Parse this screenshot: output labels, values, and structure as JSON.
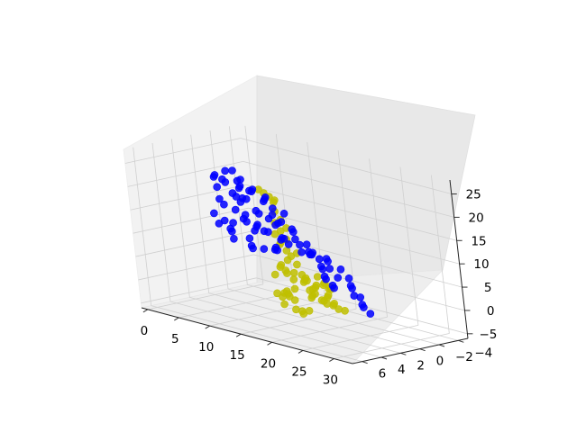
{
  "chart_data": {
    "type": "scatter3d",
    "title": "",
    "xlabel": "",
    "ylabel": "",
    "zlabel": "",
    "grid": true,
    "xlim": [
      -1,
      33
    ],
    "ylim": [
      -5,
      7
    ],
    "zlim": [
      -6,
      28
    ],
    "x_ticks": [
      "0",
      "5",
      "10",
      "15",
      "20",
      "25",
      "30"
    ],
    "y_ticks": [
      "−4",
      "−2",
      "0",
      "2",
      "4",
      "6"
    ],
    "z_ticks": [
      "−5",
      "0",
      "5",
      "10",
      "15",
      "20",
      "25"
    ],
    "series": [
      {
        "color": "#bfbf00",
        "points": [
          [
            14,
            1,
            4
          ],
          [
            15,
            1,
            3
          ],
          [
            16,
            1.5,
            5
          ],
          [
            14,
            -0.5,
            3
          ],
          [
            15,
            0,
            2
          ],
          [
            16,
            0.5,
            3
          ],
          [
            15,
            0.5,
            6
          ],
          [
            15,
            1,
            8
          ],
          [
            16,
            1,
            9
          ],
          [
            13,
            0.5,
            4
          ],
          [
            14,
            1.5,
            6
          ],
          [
            17,
            1,
            4
          ],
          [
            12,
            1,
            3
          ],
          [
            13,
            1,
            5
          ],
          [
            18,
            1.5,
            4
          ],
          [
            17,
            0,
            2
          ],
          [
            16,
            -0.5,
            1
          ],
          [
            16,
            0,
            -1
          ],
          [
            15,
            -0.5,
            0
          ],
          [
            17,
            0.5,
            0
          ],
          [
            15,
            -1,
            -1
          ],
          [
            16,
            -1,
            -2
          ],
          [
            17,
            -1,
            -1
          ],
          [
            18,
            -0.5,
            0
          ],
          [
            18,
            -1,
            -2
          ],
          [
            18,
            0,
            -1
          ],
          [
            17,
            -1.5,
            -3
          ],
          [
            16,
            -1.5,
            -3
          ],
          [
            18,
            -2,
            -4
          ],
          [
            17,
            -2,
            -4
          ],
          [
            13,
            0.5,
            -1
          ],
          [
            12,
            0,
            -1
          ],
          [
            14,
            1,
            -1
          ],
          [
            14,
            1.5,
            0
          ],
          [
            12,
            1,
            -1
          ],
          [
            13,
            1,
            -3
          ],
          [
            14,
            0.5,
            -2
          ],
          [
            12,
            0.5,
            -2
          ],
          [
            15,
            1,
            1
          ],
          [
            16,
            2,
            8
          ],
          [
            16,
            2,
            10
          ],
          [
            15,
            2,
            11
          ],
          [
            16,
            2.5,
            12
          ],
          [
            17,
            2.5,
            13
          ],
          [
            17,
            3,
            15
          ],
          [
            16,
            3,
            14
          ],
          [
            18,
            3,
            16
          ],
          [
            17,
            3.5,
            17
          ],
          [
            18,
            3.5,
            18
          ],
          [
            18,
            4,
            20
          ],
          [
            18,
            4,
            22
          ],
          [
            19,
            4.5,
            23
          ],
          [
            19,
            5,
            24
          ],
          [
            19,
            5.5,
            25
          ],
          [
            19,
            6,
            26
          ],
          [
            17,
            1,
            -3
          ],
          [
            16,
            1,
            -4
          ],
          [
            15,
            0.5,
            -4
          ],
          [
            14,
            0.5,
            -4
          ],
          [
            19,
            0.5,
            3
          ],
          [
            20,
            1,
            4
          ],
          [
            19,
            0,
            2
          ],
          [
            20,
            0.5,
            3
          ],
          [
            21,
            1,
            3
          ],
          [
            18,
            1,
            2
          ],
          [
            19,
            1,
            5
          ]
        ]
      },
      {
        "color": "#0000ff",
        "points": [
          [
            2,
            0,
            20
          ],
          [
            3,
            0.5,
            21
          ],
          [
            4,
            0,
            22
          ],
          [
            5,
            1,
            21
          ],
          [
            6,
            0.5,
            23
          ],
          [
            4,
            1,
            19
          ],
          [
            3,
            -0.5,
            19
          ],
          [
            5,
            -0.5,
            20
          ],
          [
            6,
            0,
            19
          ],
          [
            7,
            0.5,
            20
          ],
          [
            8,
            0,
            19
          ],
          [
            9,
            0.5,
            20
          ],
          [
            10,
            0,
            18
          ],
          [
            11,
            0.5,
            19
          ],
          [
            8,
            1,
            18
          ],
          [
            6,
            -1,
            18
          ],
          [
            7,
            0,
            17
          ],
          [
            9,
            -0.5,
            17
          ],
          [
            10,
            1,
            16
          ],
          [
            12,
            0.5,
            17
          ],
          [
            13,
            0,
            16
          ],
          [
            12,
            1,
            15
          ],
          [
            11,
            0,
            15
          ],
          [
            13,
            1,
            14
          ],
          [
            14,
            1,
            15
          ],
          [
            14,
            0,
            13
          ],
          [
            15,
            0.5,
            13
          ],
          [
            15,
            1.5,
            12
          ],
          [
            16,
            1,
            12
          ],
          [
            17,
            0.5,
            11
          ],
          [
            18,
            1,
            10
          ],
          [
            19,
            1.5,
            10
          ],
          [
            20,
            0.5,
            9
          ],
          [
            21,
            1,
            9
          ],
          [
            22,
            1.5,
            8
          ],
          [
            23,
            1,
            8
          ],
          [
            24,
            2,
            7
          ],
          [
            25,
            1.5,
            7
          ],
          [
            26,
            2,
            6
          ],
          [
            27,
            2.5,
            6
          ],
          [
            28,
            3,
            5
          ],
          [
            29,
            3,
            5
          ],
          [
            30,
            3.5,
            4
          ],
          [
            31,
            4,
            4
          ],
          [
            32,
            4,
            3
          ],
          [
            2,
            0,
            10
          ],
          [
            3,
            -0.5,
            9
          ],
          [
            4,
            0,
            9
          ],
          [
            5,
            0.5,
            8
          ],
          [
            6,
            -0.5,
            8
          ],
          [
            7,
            0,
            7
          ],
          [
            8,
            0.5,
            7
          ],
          [
            9,
            0,
            7
          ],
          [
            10,
            -0.5,
            7
          ],
          [
            11,
            0,
            8
          ],
          [
            12,
            0.5,
            8
          ],
          [
            6,
            1,
            12
          ],
          [
            7,
            0.5,
            13
          ],
          [
            5,
            0,
            14
          ],
          [
            8,
            -0.5,
            14
          ],
          [
            9,
            0.5,
            12
          ],
          [
            10,
            0,
            11
          ],
          [
            11,
            1,
            12
          ],
          [
            3,
            1,
            13
          ],
          [
            4,
            0.5,
            15
          ],
          [
            6,
            0,
            16
          ],
          [
            5,
            1.5,
            17
          ],
          [
            7,
            1,
            18
          ],
          [
            9,
            1.5,
            15
          ],
          [
            12,
            0,
            10
          ],
          [
            13,
            0.5,
            11
          ],
          [
            14,
            0.5,
            10
          ],
          [
            15,
            0,
            10
          ],
          [
            16,
            0.5,
            9
          ],
          [
            17,
            0,
            9
          ],
          [
            16,
            -0.5,
            8
          ],
          [
            18,
            0,
            8
          ],
          [
            19,
            0.5,
            7
          ],
          [
            20,
            1,
            7
          ],
          [
            21,
            1.5,
            6
          ],
          [
            22,
            2,
            6
          ],
          [
            23,
            2,
            5
          ],
          [
            24,
            2.5,
            5
          ],
          [
            4,
            -0.5,
            17
          ],
          [
            8,
            1,
            22
          ],
          [
            3,
            0,
            11
          ],
          [
            5,
            -1,
            11
          ],
          [
            7,
            -0.5,
            10
          ],
          [
            10,
            1,
            13
          ],
          [
            11,
            -0.5,
            13
          ]
        ]
      }
    ]
  }
}
